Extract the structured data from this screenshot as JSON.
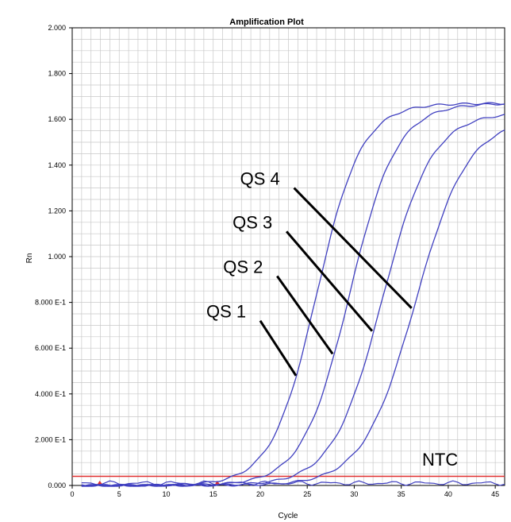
{
  "chart_data": {
    "type": "line",
    "title": "Amplification Plot",
    "xlabel": "Cycle",
    "ylabel": "Rn",
    "xlim": [
      0,
      46
    ],
    "ylim": [
      0,
      2.0
    ],
    "grid": true,
    "x_ticks": [
      {
        "value": 0,
        "label": "0"
      },
      {
        "value": 5,
        "label": "5"
      },
      {
        "value": 10,
        "label": "10"
      },
      {
        "value": 15,
        "label": "15"
      },
      {
        "value": 20,
        "label": "20"
      },
      {
        "value": 25,
        "label": "25"
      },
      {
        "value": 30,
        "label": "30"
      },
      {
        "value": 35,
        "label": "35"
      },
      {
        "value": 40,
        "label": "40"
      },
      {
        "value": 45,
        "label": "45"
      }
    ],
    "y_ticks": [
      {
        "value": 0.0,
        "label": "0.000"
      },
      {
        "value": 0.2,
        "label": "2.000 E-1"
      },
      {
        "value": 0.4,
        "label": "4.000 E-1"
      },
      {
        "value": 0.6,
        "label": "6.000 E-1"
      },
      {
        "value": 0.8,
        "label": "8.000 E-1"
      },
      {
        "value": 1.0,
        "label": "1.000"
      },
      {
        "value": 1.2,
        "label": "1.200"
      },
      {
        "value": 1.4,
        "label": "1.400"
      },
      {
        "value": 1.6,
        "label": "1.600"
      },
      {
        "value": 1.8,
        "label": "1.800"
      },
      {
        "value": 2.0,
        "label": "2.000"
      }
    ],
    "threshold": {
      "value": 0.04,
      "color": "#e03030"
    },
    "baseline_markers": [
      3,
      15.5
    ],
    "curve_color": "#4040c0",
    "series": [
      {
        "plateau": 1.67,
        "midpoint": 26.0,
        "slope": 0.42
      },
      {
        "plateau": 1.67,
        "midpoint": 29.5,
        "slope": 0.4
      },
      {
        "plateau": 1.63,
        "midpoint": 33.0,
        "slope": 0.38
      },
      {
        "plateau": 1.6,
        "midpoint": 36.5,
        "slope": 0.36
      }
    ],
    "ntc": {
      "label": "NTC",
      "value": 0.01
    },
    "annotations": [
      {
        "label": "QS 1",
        "x1": 20.0,
        "y1": 0.72,
        "x2": 23.8,
        "y2": 0.48
      },
      {
        "label": "QS 2",
        "x1": 21.8,
        "y1": 0.915,
        "x2": 27.7,
        "y2": 0.575
      },
      {
        "label": "QS 3",
        "x1": 22.8,
        "y1": 1.11,
        "x2": 31.9,
        "y2": 0.675
      },
      {
        "label": "QS 4",
        "x1": 23.6,
        "y1": 1.3,
        "x2": 36.1,
        "y2": 0.775
      }
    ]
  }
}
